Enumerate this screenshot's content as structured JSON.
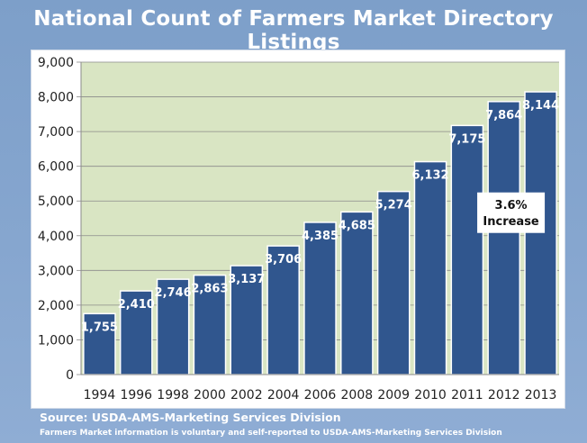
{
  "title": "National Count of Farmers Market Directory Listings",
  "source": "Source:  USDA-AMS-Marketing Services Division",
  "footnote": "Farmers Market information is voluntary and self-reported to USDA-AMS-Marketing Services Division",
  "colors": {
    "background": "#86a6cf",
    "plot_area": "#d9e5c3",
    "bar": "#30568e",
    "text": "#ffffff"
  },
  "chart_data": {
    "type": "bar",
    "categories": [
      "1994",
      "1996",
      "1998",
      "2000",
      "2002",
      "2004",
      "2006",
      "2008",
      "2009",
      "2010",
      "2011",
      "2012",
      "2013"
    ],
    "values": [
      1755,
      2410,
      2746,
      2863,
      3137,
      3706,
      4385,
      4685,
      5274,
      6132,
      7175,
      7864,
      8144
    ],
    "data_labels": [
      "1,755",
      "2,410",
      "2,746",
      "2,863",
      "3,137",
      "3,706",
      "4,385",
      "4,685",
      "5,274",
      "6,132",
      "7,175",
      "7,864",
      "8,144"
    ],
    "y_ticks": [
      "0",
      "1,000",
      "2,000",
      "3,000",
      "4,000",
      "5,000",
      "6,000",
      "7,000",
      "8,000",
      "9,000"
    ],
    "ylim": [
      0,
      9000
    ],
    "grid": true,
    "annotation": {
      "line1": "3.6%",
      "line2": "Increase",
      "category": "2013"
    }
  }
}
